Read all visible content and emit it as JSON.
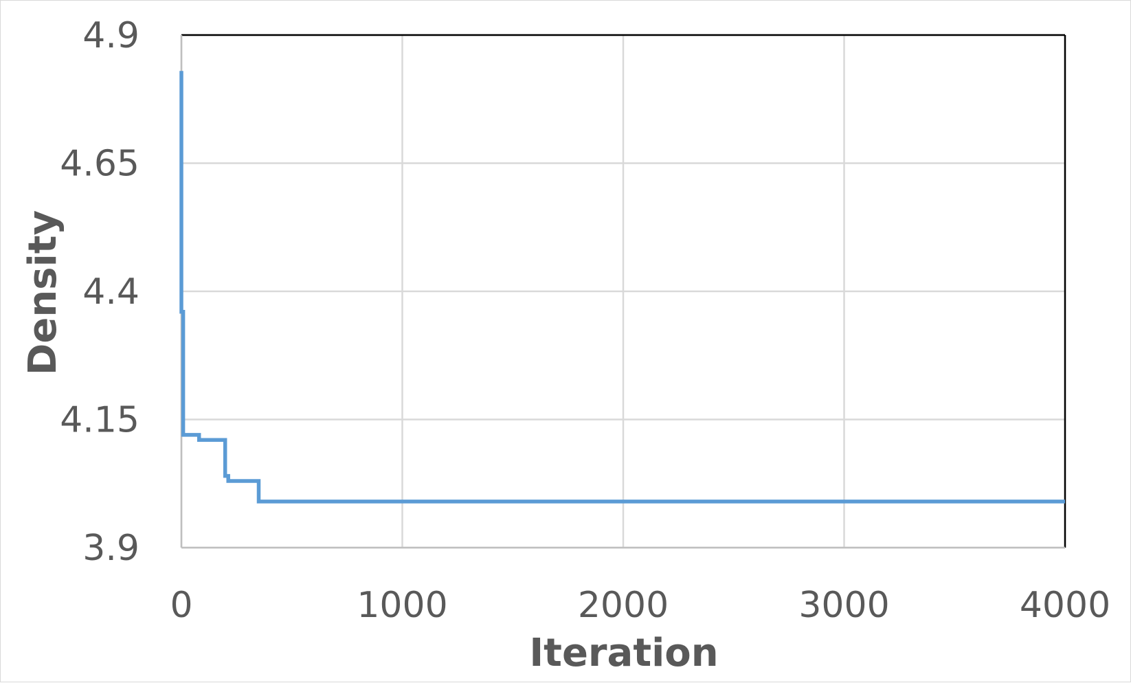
{
  "chart_data": {
    "type": "line",
    "title": "",
    "xlabel": "Iteration",
    "ylabel": "Density",
    "xlim": [
      0,
      4000
    ],
    "ylim": [
      3.9,
      4.9
    ],
    "x_ticks": [
      "0",
      "1000",
      "2000",
      "3000",
      "4000"
    ],
    "y_ticks": [
      "3.9",
      "4.15",
      "4.4",
      "4.65",
      "4.9"
    ],
    "grid": true,
    "legend": "none",
    "line_color": "#5B9BD5",
    "series": [
      {
        "x": [
          0,
          0,
          8,
          8,
          80,
          80,
          198,
          198,
          212,
          212,
          350,
          350,
          4000
        ],
        "y": [
          4.83,
          4.36,
          4.36,
          4.12,
          4.12,
          4.11,
          4.11,
          4.04,
          4.04,
          4.03,
          4.03,
          3.99,
          3.99
        ]
      }
    ]
  }
}
